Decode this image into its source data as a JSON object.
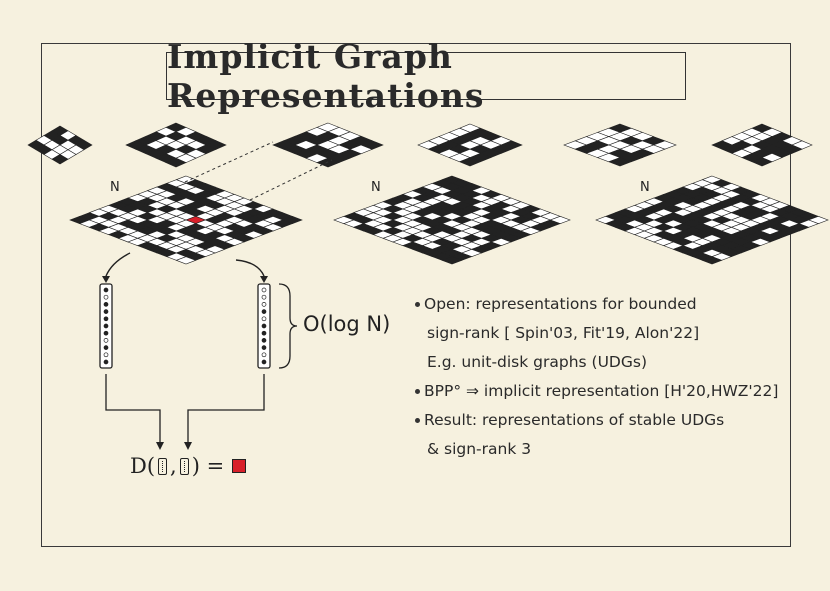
{
  "title": "Implicit Graph Representations",
  "n_label": "N",
  "complexity_label": "O(log N)",
  "formula": {
    "prefix": "D(",
    "separator": ",",
    "suffix": ") ="
  },
  "bullets": [
    {
      "text": "Open: representations for bounded",
      "bullet": true
    },
    {
      "text": "sign-rank  [ Spin'03,  Fit'19, Alon'22]",
      "bullet": false
    },
    {
      "text": "E.g. unit-disk graphs (UDGs)",
      "bullet": false
    },
    {
      "text": "BPP° ⇒ implicit representation [H'20,HWZ'22]",
      "bullet": true
    },
    {
      "text": "Result: representations of stable UDGs",
      "bullet": true
    },
    {
      "text": "& sign-rank 3",
      "bullet": false
    }
  ],
  "colors": {
    "ink": "#222222",
    "paper": "#f6f1df",
    "highlight": "#d8202a"
  }
}
